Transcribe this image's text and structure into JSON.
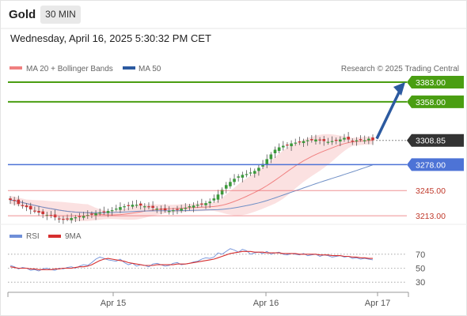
{
  "header": {
    "asset": "Gold",
    "timeframe": "30 MIN",
    "datetime": "Wednesday, April 16, 2025 5:30:32 PM CET"
  },
  "legend": {
    "ma20": "MA 20 + Bollinger Bands",
    "ma50": "MA 50",
    "research": "Research © 2025 Trading Central",
    "rsi": "RSI",
    "rsi_ma": "9MA"
  },
  "colors": {
    "targets": "#4a9e12",
    "pivot": "#4d73d6",
    "support": "#e8555b",
    "current": "#333333",
    "arrow": "#2c5aa0",
    "bollinger": "#fbe1e1",
    "ma20": "#f08080",
    "ma50": "#6f8fc6",
    "rsi": "#6f8fd8",
    "rsi_ma": "#d62f2f",
    "candle_up": "#3a9a3a",
    "candle_down": "#cc3333"
  },
  "chart_data": [
    {
      "type": "candlestick",
      "title": "Gold",
      "ylim": [
        3196,
        3395
      ],
      "x_ticks": [
        "Apr 15",
        "Apr 16",
        "Apr 17"
      ],
      "price_levels": [
        {
          "value": 3383.0,
          "label": "3383.00",
          "kind": "target"
        },
        {
          "value": 3358.0,
          "label": "3358.00",
          "kind": "target"
        },
        {
          "value": 3308.85,
          "label": "3308.85",
          "kind": "current"
        },
        {
          "value": 3278.0,
          "label": "3278.00",
          "kind": "pivot"
        },
        {
          "value": 3245.0,
          "label": "3245.00",
          "kind": "support"
        },
        {
          "value": 3213.0,
          "label": "3213.00",
          "kind": "support"
        }
      ],
      "close": [
        3233,
        3232,
        3228,
        3226,
        3224,
        3221,
        3219,
        3217,
        3215,
        3214,
        3213,
        3211,
        3209,
        3208,
        3209,
        3210,
        3211,
        3212,
        3213,
        3214,
        3215,
        3216,
        3217,
        3218,
        3219,
        3220,
        3222,
        3224,
        3225,
        3226,
        3227,
        3227,
        3226,
        3225,
        3224,
        3223,
        3222,
        3221,
        3220,
        3219,
        3220,
        3221,
        3222,
        3223,
        3225,
        3226,
        3227,
        3228,
        3229,
        3231,
        3235,
        3240,
        3246,
        3252,
        3256,
        3260,
        3263,
        3265,
        3266,
        3268,
        3270,
        3274,
        3279,
        3285,
        3291,
        3297,
        3300,
        3302,
        3303,
        3305,
        3306,
        3307,
        3308,
        3309,
        3309,
        3310,
        3309,
        3308,
        3307,
        3308,
        3309,
        3310,
        3312,
        3310,
        3308,
        3309,
        3310,
        3309,
        3311,
        3309
      ],
      "series": [
        {
          "name": "MA 20 + Bollinger Bands"
        },
        {
          "name": "MA 50"
        }
      ]
    },
    {
      "type": "line",
      "title": "RSI",
      "ylim": [
        20,
        80
      ],
      "y_ticks": [
        70,
        50,
        30
      ],
      "series": [
        {
          "name": "RSI",
          "values": [
            54,
            52,
            49,
            51,
            50,
            47,
            48,
            46,
            49,
            50,
            48,
            47,
            50,
            49,
            51,
            52,
            50,
            53,
            55,
            54,
            58,
            63,
            66,
            64,
            62,
            61,
            60,
            63,
            58,
            55,
            57,
            53,
            55,
            54,
            52,
            56,
            57,
            55,
            53,
            54,
            57,
            58,
            55,
            56,
            57,
            59,
            60,
            63,
            65,
            64,
            66,
            72,
            70,
            74,
            78,
            76,
            73,
            77,
            75,
            70,
            72,
            73,
            71,
            74,
            70,
            72,
            73,
            70,
            69,
            71,
            70,
            69,
            71,
            68,
            69,
            70,
            67,
            69,
            68,
            66,
            67,
            68,
            66,
            67,
            64,
            65,
            63,
            64,
            63,
            62
          ]
        },
        {
          "name": "9MA",
          "values": [
            52,
            51,
            50,
            50,
            50,
            49,
            49,
            48,
            48,
            48,
            48,
            49,
            49,
            50,
            50,
            50,
            51,
            52,
            52,
            53,
            55,
            58,
            61,
            63,
            64,
            63,
            62,
            61,
            60,
            58,
            57,
            56,
            55,
            54,
            54,
            54,
            55,
            55,
            55,
            55,
            55,
            56,
            56,
            56,
            57,
            58,
            59,
            60,
            61,
            62,
            63,
            65,
            67,
            69,
            71,
            72,
            73,
            74,
            74,
            74,
            73,
            73,
            73,
            72,
            72,
            72,
            72,
            71,
            71,
            71,
            71,
            70,
            70,
            70,
            70,
            70,
            69,
            69,
            69,
            68,
            68,
            68,
            67,
            67,
            66,
            66,
            65,
            65,
            64,
            64
          ]
        }
      ]
    }
  ]
}
